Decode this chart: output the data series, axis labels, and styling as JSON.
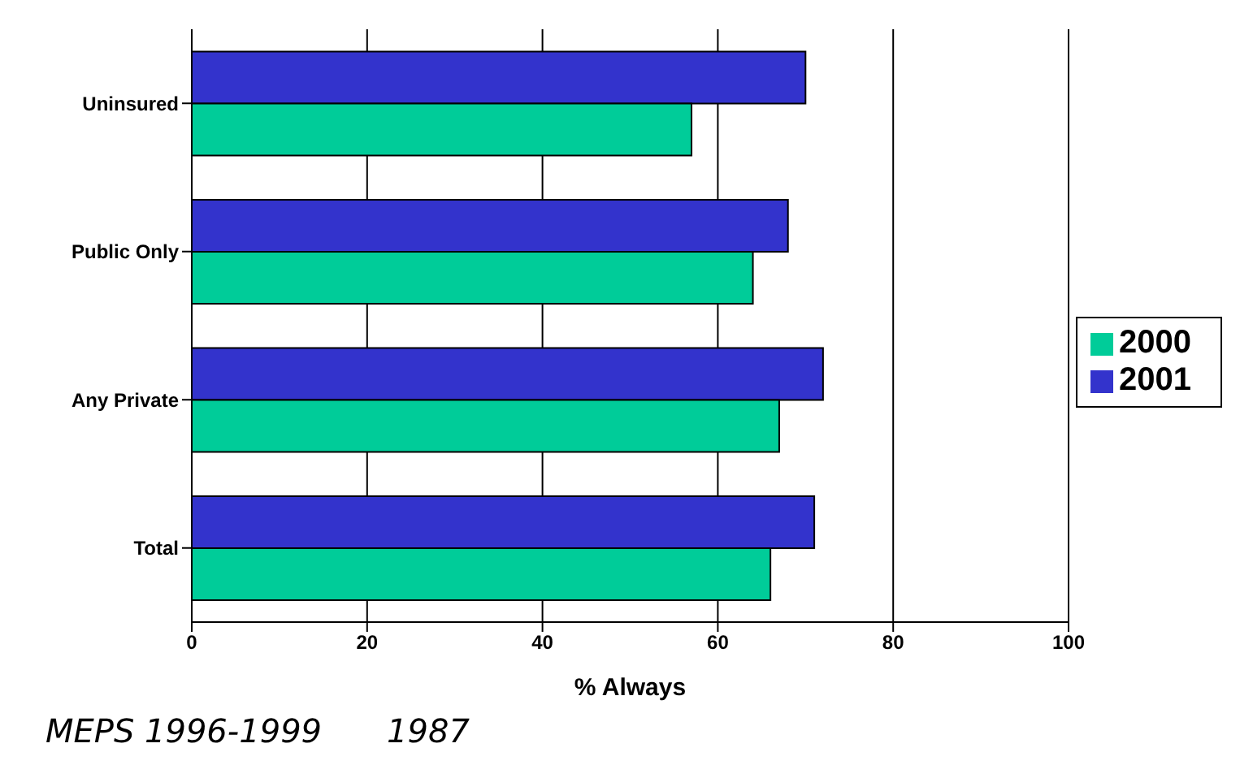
{
  "chart_data": {
    "type": "bar",
    "orientation": "horizontal",
    "categories": [
      "Uninsured",
      "Public Only",
      "Any Private",
      "Total"
    ],
    "series": [
      {
        "name": "2001",
        "color": "#3333cc",
        "values": [
          70,
          68,
          72,
          71
        ]
      },
      {
        "name": "2000",
        "color": "#00cc99",
        "values": [
          57,
          64,
          67,
          66
        ]
      }
    ],
    "xlabel": "% Always",
    "xlim": [
      0,
      100
    ],
    "xticks": [
      0,
      20,
      40,
      60,
      80,
      100
    ],
    "grid": "x",
    "legend": "right",
    "annotations": [
      "MEPS 1996-1999",
      "1987"
    ]
  }
}
